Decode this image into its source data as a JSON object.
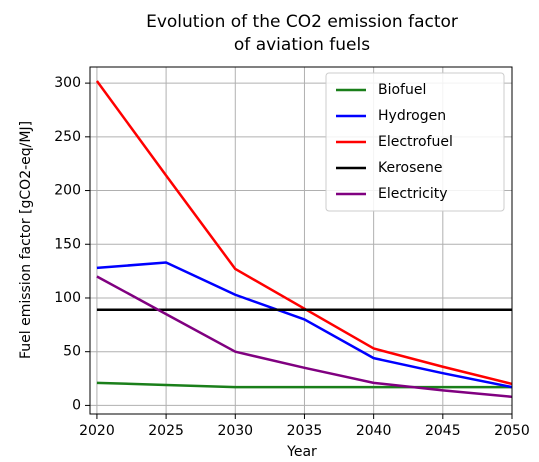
{
  "chart_data": {
    "type": "line",
    "title": [
      "Evolution of the CO2 emission factor",
      "of aviation fuels"
    ],
    "x_label": "Year",
    "y_label": "Fuel emission factor [gCO2-eq/MJ]",
    "x": [
      2020,
      2025,
      2030,
      2035,
      2040,
      2045,
      2050
    ],
    "series": [
      {
        "name": "Biofuel",
        "color": "#1a7f1a",
        "values": [
          21,
          19,
          17,
          17,
          17,
          17,
          17
        ]
      },
      {
        "name": "Hydrogen",
        "color": "#0000ff",
        "values": [
          128,
          133,
          103,
          80,
          44,
          30,
          17
        ]
      },
      {
        "name": "Electrofuel",
        "color": "#ff0000",
        "values": [
          302,
          214,
          127,
          90,
          53,
          36,
          20
        ]
      },
      {
        "name": "Kerosene",
        "color": "#000000",
        "values": [
          89,
          89,
          89,
          89,
          89,
          89,
          89
        ]
      },
      {
        "name": "Electricity",
        "color": "#800080",
        "values": [
          120,
          85,
          50,
          35,
          21,
          14,
          8
        ]
      }
    ],
    "xlim": [
      2019.5,
      2050
    ],
    "ylim": [
      -8,
      315
    ],
    "xticks": [
      2020,
      2025,
      2030,
      2035,
      2040,
      2045,
      2050
    ],
    "yticks": [
      0,
      50,
      100,
      150,
      200,
      250,
      300
    ],
    "grid": true,
    "legend": "upper right"
  }
}
